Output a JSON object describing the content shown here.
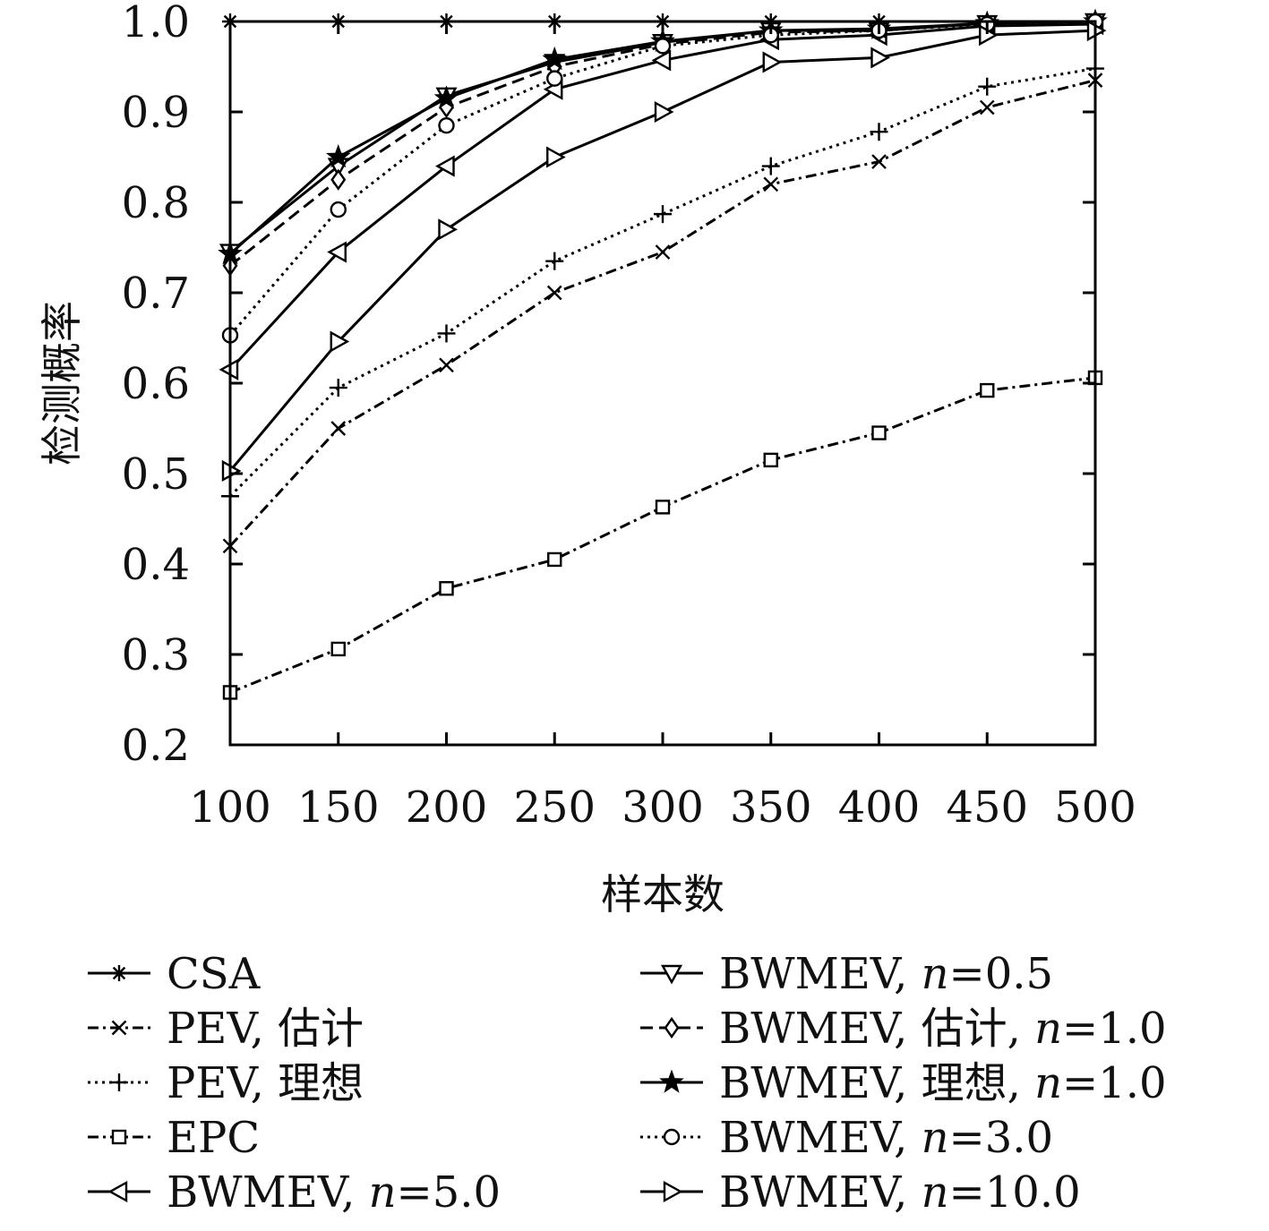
{
  "chart_data": {
    "type": "line",
    "title": "",
    "xlabel": "样本数",
    "ylabel": "检测概率",
    "xlim": [
      100,
      500
    ],
    "ylim": [
      0.2,
      1.0
    ],
    "grid": false,
    "legend_placement": "bottom, below plot, two columns",
    "x_ticks": [
      "100",
      "150",
      "200",
      "250",
      "300",
      "350",
      "400",
      "450",
      "500"
    ],
    "y_ticks": [
      "0.2",
      "0.3",
      "0.4",
      "0.5",
      "0.6",
      "0.7",
      "0.8",
      "0.9",
      "1.0"
    ],
    "x": [
      100,
      150,
      200,
      250,
      300,
      350,
      400,
      450,
      500
    ],
    "series": [
      {
        "name": "CSA",
        "label_parts": [
          {
            "t": "CSA",
            "i": false
          }
        ],
        "marker": "asterisk",
        "dash": "solid",
        "values": [
          1.0,
          1.0,
          1.0,
          1.0,
          1.0,
          1.0,
          1.0,
          1.0,
          1.0
        ]
      },
      {
        "name": "PEV, 估计",
        "label_parts": [
          {
            "t": "PEV, 估计",
            "i": false
          }
        ],
        "marker": "x",
        "dash": "dashdot",
        "values": [
          0.42,
          0.55,
          0.62,
          0.7,
          0.745,
          0.82,
          0.845,
          0.905,
          0.935
        ]
      },
      {
        "name": "PEV, 理想",
        "label_parts": [
          {
            "t": "PEV, 理想",
            "i": false
          }
        ],
        "marker": "plus",
        "dash": "dotted",
        "values": [
          0.475,
          0.595,
          0.655,
          0.735,
          0.787,
          0.84,
          0.878,
          0.928,
          0.948
        ]
      },
      {
        "name": "EPC",
        "label_parts": [
          {
            "t": "EPC",
            "i": false
          }
        ],
        "marker": "square",
        "dash": "dashdot",
        "values": [
          0.258,
          0.306,
          0.373,
          0.405,
          0.463,
          0.515,
          0.545,
          0.592,
          0.606
        ]
      },
      {
        "name": "BWMEV, n=5.0",
        "label_parts": [
          {
            "t": "BWMEV, ",
            "i": false
          },
          {
            "t": "n",
            "i": true
          },
          {
            "t": "=5.0",
            "i": false
          }
        ],
        "marker": "triangle-left",
        "dash": "solid",
        "values": [
          0.615,
          0.745,
          0.84,
          0.925,
          0.957,
          0.98,
          0.985,
          0.995,
          0.997
        ]
      },
      {
        "name": "BWMEV, n=0.5",
        "label_parts": [
          {
            "t": "BWMEV, ",
            "i": false
          },
          {
            "t": "n",
            "i": true
          },
          {
            "t": "=0.5",
            "i": false
          }
        ],
        "marker": "triangle-down",
        "dash": "solid",
        "values": [
          0.745,
          0.84,
          0.918,
          0.955,
          0.977,
          0.99,
          0.99,
          0.998,
          1.0
        ]
      },
      {
        "name": "BWMEV, 估计, n=1.0",
        "label_parts": [
          {
            "t": "BWMEV, 估计, ",
            "i": false
          },
          {
            "t": "n",
            "i": true
          },
          {
            "t": "=1.0",
            "i": false
          }
        ],
        "marker": "diamond",
        "dash": "dashed",
        "values": [
          0.73,
          0.825,
          0.905,
          0.95,
          0.975,
          0.988,
          0.99,
          0.998,
          1.0
        ]
      },
      {
        "name": "BWMEV, 理想, n=1.0",
        "label_parts": [
          {
            "t": "BWMEV, 理想, ",
            "i": false
          },
          {
            "t": "n",
            "i": true
          },
          {
            "t": "=1.0",
            "i": false
          }
        ],
        "marker": "star",
        "dash": "solid",
        "values": [
          0.743,
          0.85,
          0.915,
          0.958,
          0.978,
          0.99,
          0.992,
          0.998,
          1.0
        ]
      },
      {
        "name": "BWMEV, n=3.0",
        "label_parts": [
          {
            "t": "BWMEV, ",
            "i": false
          },
          {
            "t": "n",
            "i": true
          },
          {
            "t": "=3.0",
            "i": false
          }
        ],
        "marker": "circle",
        "dash": "dotted",
        "values": [
          0.653,
          0.792,
          0.885,
          0.937,
          0.973,
          0.985,
          0.99,
          0.997,
          1.0
        ]
      },
      {
        "name": "BWMEV, n=10.0",
        "label_parts": [
          {
            "t": "BWMEV, ",
            "i": false
          },
          {
            "t": "n",
            "i": true
          },
          {
            "t": "=10.0",
            "i": false
          }
        ],
        "marker": "triangle-right",
        "dash": "solid",
        "values": [
          0.503,
          0.646,
          0.77,
          0.85,
          0.9,
          0.955,
          0.96,
          0.985,
          0.99
        ]
      }
    ]
  }
}
